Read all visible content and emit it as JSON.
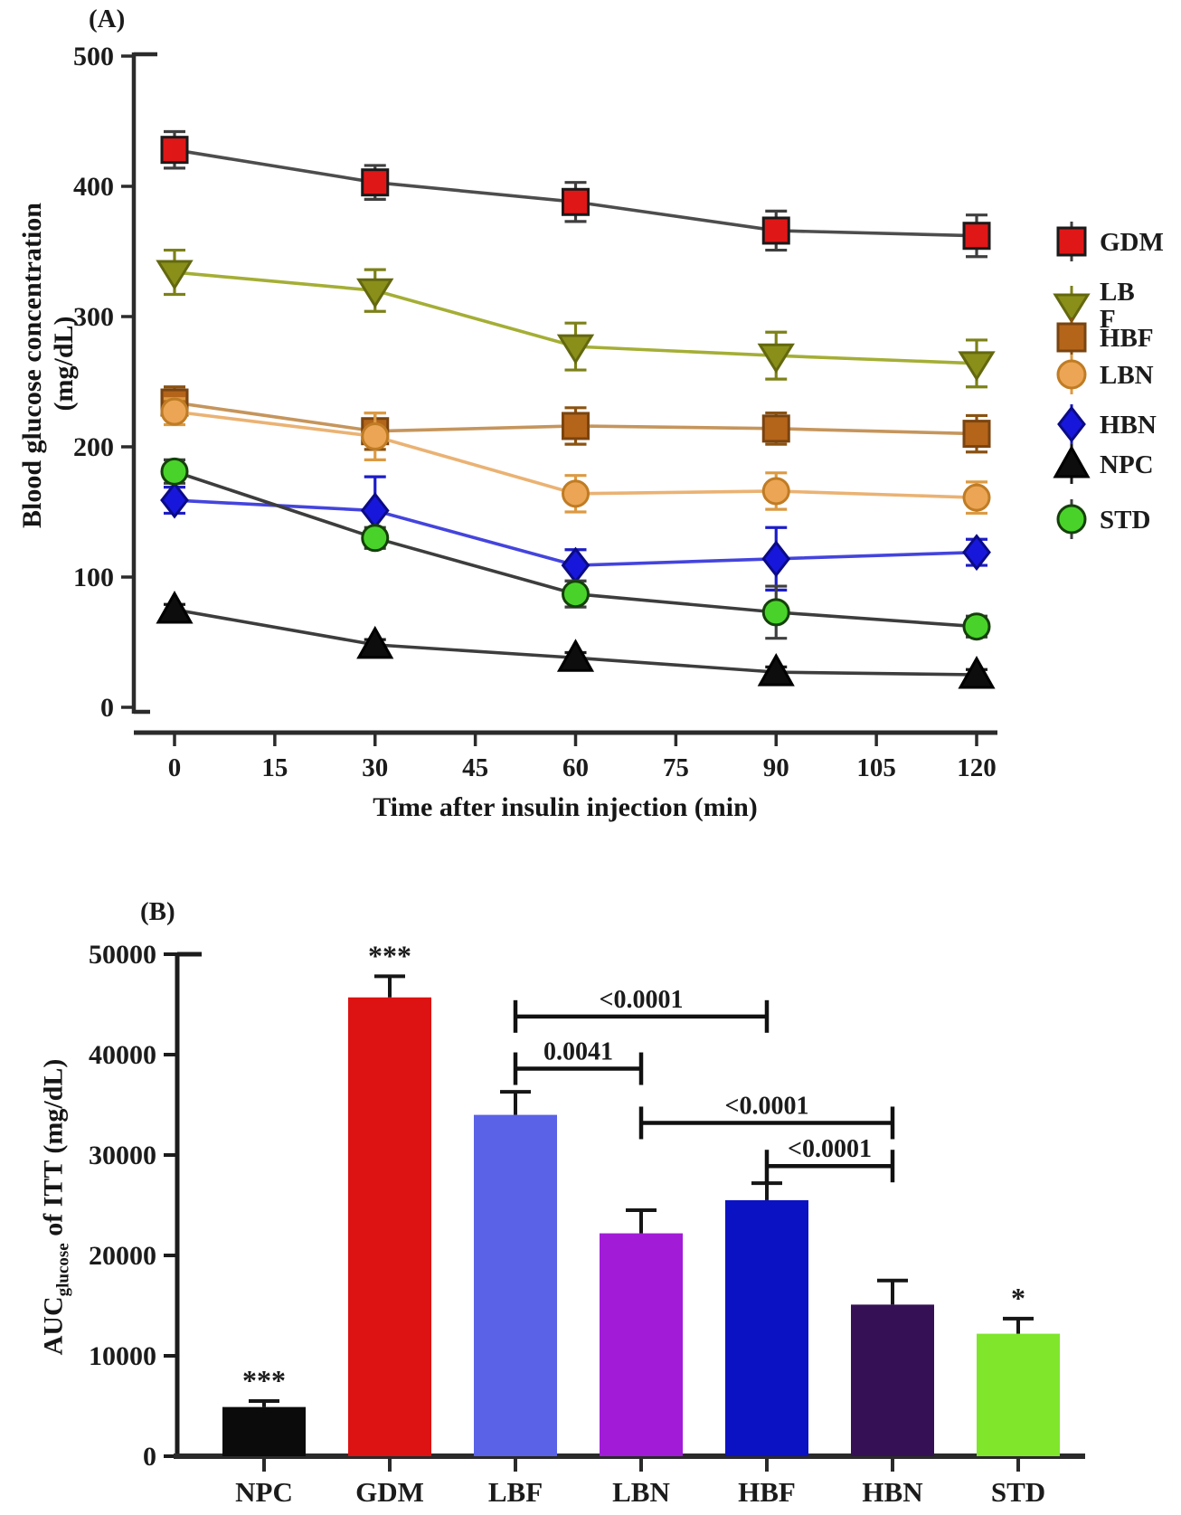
{
  "chart_data": [
    {
      "type": "line",
      "panel_label": "(A)",
      "xlabel": "Time after insulin injection (min)",
      "ylabel_line1": "Blood glucose concentration",
      "ylabel_line2": "(mg/dL)",
      "x": [
        0,
        30,
        60,
        90,
        120
      ],
      "x_ticks": [
        0,
        15,
        30,
        45,
        60,
        75,
        90,
        105,
        120
      ],
      "y_ticks": [
        0,
        100,
        200,
        300,
        400,
        500
      ],
      "ylim": [
        0,
        500
      ],
      "legend_position": "right",
      "series": [
        {
          "name": "GDM",
          "legend_label": "GDM",
          "marker": "square",
          "color": "#E01717",
          "edge": "#1A1A1A",
          "line_color": "#4D4D4D",
          "err_color": "#3F3F3F",
          "values": [
            428,
            403,
            388,
            366,
            362
          ],
          "errors": [
            14,
            13,
            15,
            15,
            16
          ]
        },
        {
          "name": "LBF",
          "legend_label": "LB\nF",
          "marker": "triangle-down",
          "color": "#8A8F1A",
          "edge": "#63680F",
          "line_color": "#A4AE35",
          "err_color": "#7C8118",
          "values": [
            334,
            320,
            277,
            270,
            264
          ],
          "errors": [
            17,
            16,
            18,
            18,
            18
          ]
        },
        {
          "name": "HBF",
          "legend_label": "HBF",
          "marker": "square",
          "color": "#B4651A",
          "edge": "#7A4410",
          "line_color": "#C5955C",
          "err_color": "#8A5212",
          "values": [
            234,
            212,
            216,
            214,
            210
          ],
          "errors": [
            12,
            14,
            14,
            12,
            14
          ]
        },
        {
          "name": "LBN",
          "legend_label": "LBN",
          "marker": "circle",
          "color": "#ECA554",
          "edge": "#C07C24",
          "line_color": "#EAB273",
          "err_color": "#DC9A42",
          "values": [
            227,
            208,
            164,
            166,
            161
          ],
          "errors": [
            10,
            18,
            14,
            14,
            12
          ]
        },
        {
          "name": "HBN",
          "legend_label": "HBN",
          "marker": "diamond",
          "color": "#1717DC",
          "edge": "#0B0B86",
          "line_color": "#4444DD",
          "err_color": "#1D1DC8",
          "values": [
            159,
            151,
            109,
            114,
            119
          ],
          "errors": [
            10,
            26,
            12,
            24,
            10
          ]
        },
        {
          "name": "NPC",
          "legend_label": "NPC",
          "marker": "triangle-up",
          "color": "#0D0D0D",
          "edge": "#000000",
          "line_color": "#3D3D3D",
          "err_color": "#1A1A1A",
          "values": [
            75,
            48,
            38,
            27,
            25
          ],
          "errors": [
            4,
            4,
            4,
            4,
            4
          ]
        },
        {
          "name": "STD",
          "legend_label": "STD",
          "marker": "circle",
          "color": "#49D32A",
          "edge": "#15400A",
          "line_color": "#3D3D3D",
          "err_color": "#3F3F3F",
          "values": [
            181,
            130,
            87,
            73,
            62
          ],
          "errors": [
            9,
            8,
            10,
            20,
            8
          ]
        }
      ]
    },
    {
      "type": "bar",
      "panel_label": "(B)",
      "ylabel_prefix": "AUC",
      "ylabel_sub": "glucose",
      "ylabel_suffix": " of ITT (mg/dL)",
      "categories": [
        "NPC",
        "GDM",
        "LBF",
        "LBN",
        "HBF",
        "HBN",
        "STD"
      ],
      "values": [
        4900,
        45700,
        34000,
        22200,
        25500,
        15100,
        12200
      ],
      "errors": [
        600,
        2100,
        2300,
        2300,
        1700,
        2400,
        1500
      ],
      "bar_colors": [
        "#0B0B0B",
        "#DD1212",
        "#5A62E8",
        "#A21CD8",
        "#0B12C4",
        "#351055",
        "#7FE62B"
      ],
      "sig_labels": [
        "***",
        "***",
        "",
        "",
        "",
        "",
        "*"
      ],
      "y_ticks": [
        0,
        10000,
        20000,
        30000,
        40000,
        50000
      ],
      "ylim": [
        0,
        50000
      ],
      "comparisons": [
        {
          "from": "LBF",
          "to": "HBF",
          "label": "<0.0001",
          "y_value": 43800
        },
        {
          "from": "LBF",
          "to": "LBN",
          "label": "0.0041",
          "y_value": 38600
        },
        {
          "from": "LBN",
          "to": "HBN",
          "label": "<0.0001",
          "y_value": 33200
        },
        {
          "from": "HBF",
          "to": "HBN",
          "label": "<0.0001",
          "y_value": 28900
        }
      ]
    }
  ]
}
